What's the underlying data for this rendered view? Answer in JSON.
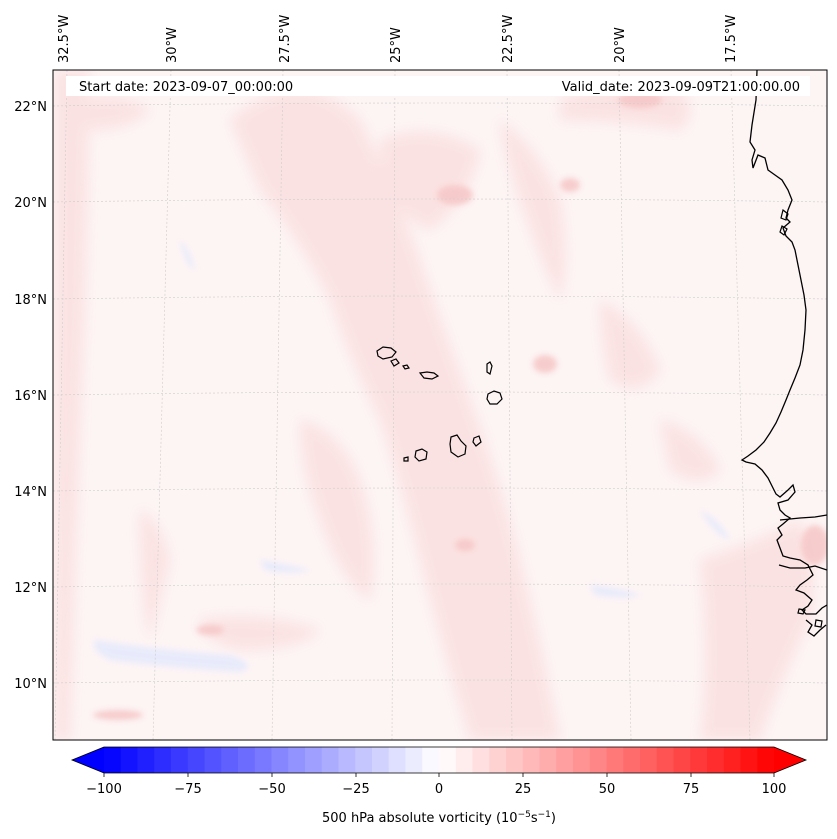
{
  "map": {
    "start_date": "Start date: 2023-09-07_00:00:00",
    "valid_date": "Valid_date: 2023-09-09T21:00:00.00",
    "lon_labels": [
      "32.5°W",
      "30°W",
      "27.5°W",
      "25°W",
      "22.5°W",
      "20°W",
      "17.5°W"
    ],
    "lat_labels": [
      "22°N",
      "20°N",
      "18°N",
      "16°N",
      "14°N",
      "12°N",
      "10°N"
    ],
    "gridlines": "on",
    "field_colors": {
      "background": "#fdf3f3",
      "light_red": "#fbe2e2",
      "medium_red": "#f8cccc",
      "light_blue": "#eef0fd",
      "coast": "#000000"
    }
  },
  "colorbar": {
    "title_main": "500 hPa absolute vorticity (10",
    "title_exp1": "−5",
    "title_mid": "s",
    "title_exp2": "−1",
    "title_end": ")",
    "tick_labels": [
      "−100",
      "−75",
      "−50",
      "−25",
      "0",
      "25",
      "50",
      "75",
      "100"
    ],
    "range": [
      -100,
      100
    ],
    "extend": "both",
    "cmap_low": "#0000ff",
    "cmap_mid": "#ffffff",
    "cmap_high": "#ff0000"
  }
}
